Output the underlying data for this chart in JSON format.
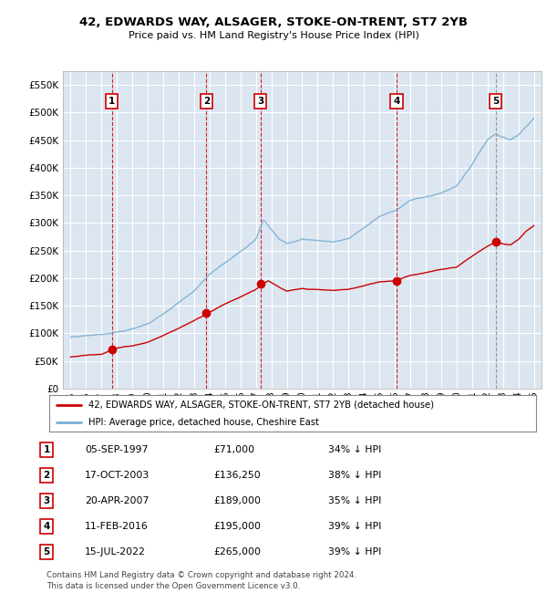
{
  "title": "42, EDWARDS WAY, ALSAGER, STOKE-ON-TRENT, ST7 2YB",
  "subtitle": "Price paid vs. HM Land Registry's House Price Index (HPI)",
  "ylim": [
    0,
    575000
  ],
  "yticks": [
    0,
    50000,
    100000,
    150000,
    200000,
    250000,
    300000,
    350000,
    400000,
    450000,
    500000,
    550000
  ],
  "ytick_labels": [
    "£0",
    "£50K",
    "£100K",
    "£150K",
    "£200K",
    "£250K",
    "£300K",
    "£350K",
    "£400K",
    "£450K",
    "£500K",
    "£550K"
  ],
  "sale_dates_x": [
    1997.67,
    2003.79,
    2007.3,
    2016.11,
    2022.54
  ],
  "sale_prices_y": [
    71000,
    136250,
    189000,
    195000,
    265000
  ],
  "sale_labels": [
    "1",
    "2",
    "3",
    "4",
    "5"
  ],
  "transaction_dates": [
    "05-SEP-1997",
    "17-OCT-2003",
    "20-APR-2007",
    "11-FEB-2016",
    "15-JUL-2022"
  ],
  "transaction_prices": [
    "£71,000",
    "£136,250",
    "£189,000",
    "£195,000",
    "£265,000"
  ],
  "transaction_hpi": [
    "34% ↓ HPI",
    "38% ↓ HPI",
    "35% ↓ HPI",
    "39% ↓ HPI",
    "39% ↓ HPI"
  ],
  "red_line_color": "#cc0000",
  "blue_line_color": "#7bafd4",
  "plot_bg_color": "#dce6f1",
  "grid_color": "#ffffff",
  "legend_label_red": "42, EDWARDS WAY, ALSAGER, STOKE-ON-TRENT, ST7 2YB (detached house)",
  "legend_label_blue": "HPI: Average price, detached house, Cheshire East",
  "footer_text": "Contains HM Land Registry data © Crown copyright and database right 2024.\nThis data is licensed under the Open Government Licence v3.0.",
  "xmin": 1994.5,
  "xmax": 2025.5,
  "hpi_keypoints": [
    [
      1995.0,
      93000
    ],
    [
      1996.0,
      96000
    ],
    [
      1997.0,
      98000
    ],
    [
      1998.0,
      103000
    ],
    [
      1999.0,
      108000
    ],
    [
      2000.0,
      118000
    ],
    [
      2001.0,
      135000
    ],
    [
      2002.0,
      155000
    ],
    [
      2003.0,
      175000
    ],
    [
      2004.0,
      205000
    ],
    [
      2005.0,
      225000
    ],
    [
      2006.0,
      248000
    ],
    [
      2007.0,
      270000
    ],
    [
      2007.5,
      305000
    ],
    [
      2008.5,
      270000
    ],
    [
      2009.0,
      262000
    ],
    [
      2009.5,
      265000
    ],
    [
      2010.0,
      270000
    ],
    [
      2011.0,
      268000
    ],
    [
      2012.0,
      265000
    ],
    [
      2013.0,
      270000
    ],
    [
      2014.0,
      290000
    ],
    [
      2015.0,
      310000
    ],
    [
      2016.0,
      320000
    ],
    [
      2017.0,
      340000
    ],
    [
      2018.0,
      345000
    ],
    [
      2019.0,
      352000
    ],
    [
      2020.0,
      365000
    ],
    [
      2021.0,
      405000
    ],
    [
      2022.0,
      450000
    ],
    [
      2022.5,
      460000
    ],
    [
      2023.0,
      455000
    ],
    [
      2023.5,
      450000
    ],
    [
      2024.0,
      460000
    ],
    [
      2024.5,
      475000
    ],
    [
      2025.0,
      490000
    ]
  ],
  "red_keypoints": [
    [
      1995.0,
      57000
    ],
    [
      1996.0,
      60000
    ],
    [
      1997.0,
      63000
    ],
    [
      1997.67,
      71000
    ],
    [
      1998.0,
      74000
    ],
    [
      1999.0,
      78000
    ],
    [
      2000.0,
      85000
    ],
    [
      2001.0,
      97000
    ],
    [
      2002.0,
      110000
    ],
    [
      2003.0,
      124000
    ],
    [
      2003.79,
      136250
    ],
    [
      2004.0,
      140000
    ],
    [
      2005.0,
      155000
    ],
    [
      2006.0,
      168000
    ],
    [
      2007.0,
      182000
    ],
    [
      2007.3,
      189000
    ],
    [
      2007.8,
      197000
    ],
    [
      2008.5,
      185000
    ],
    [
      2009.0,
      177000
    ],
    [
      2009.5,
      179000
    ],
    [
      2010.0,
      181000
    ],
    [
      2011.0,
      179000
    ],
    [
      2012.0,
      177000
    ],
    [
      2013.0,
      179000
    ],
    [
      2014.0,
      185000
    ],
    [
      2015.0,
      192000
    ],
    [
      2016.11,
      195000
    ],
    [
      2016.5,
      200000
    ],
    [
      2017.0,
      205000
    ],
    [
      2018.0,
      210000
    ],
    [
      2019.0,
      215000
    ],
    [
      2020.0,
      220000
    ],
    [
      2021.0,
      240000
    ],
    [
      2022.0,
      258000
    ],
    [
      2022.54,
      265000
    ],
    [
      2023.0,
      262000
    ],
    [
      2023.5,
      260000
    ],
    [
      2024.0,
      270000
    ],
    [
      2024.5,
      285000
    ],
    [
      2025.0,
      295000
    ]
  ]
}
